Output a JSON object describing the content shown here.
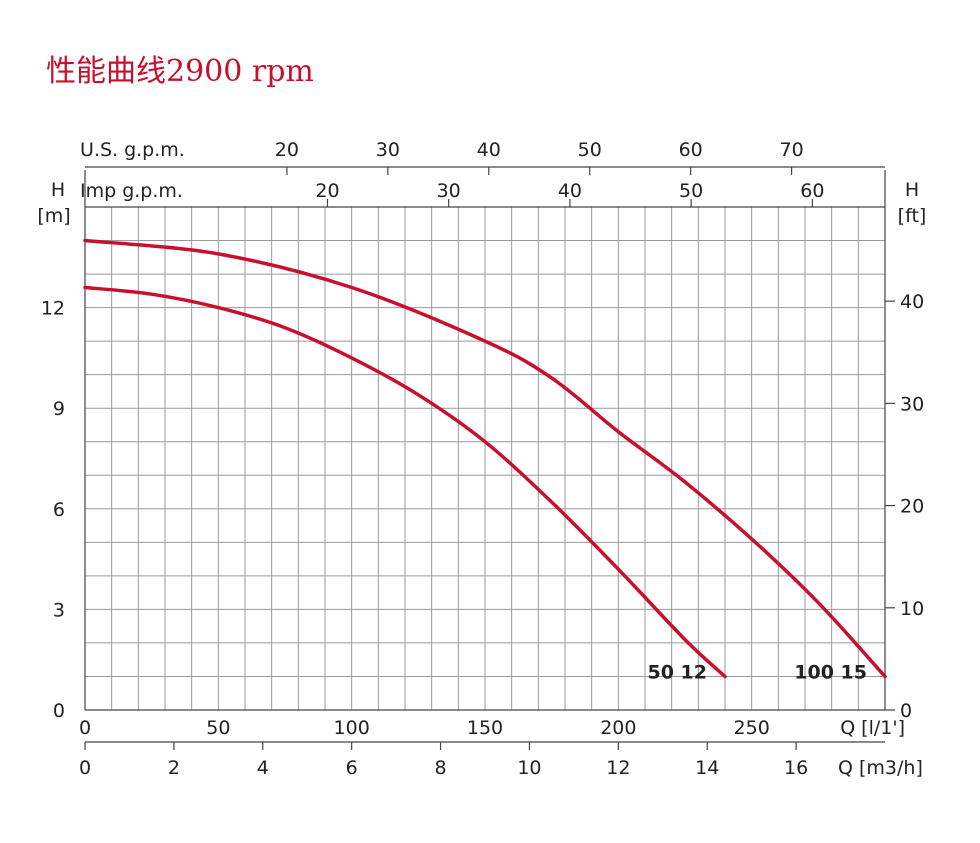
{
  "chart_data": {
    "type": "line",
    "title": "性能曲线2900 rpm",
    "x_axis_bottom_1": {
      "label": "Q [l/1']",
      "range": [
        0,
        300
      ],
      "ticks": [
        0,
        50,
        100,
        150,
        200,
        250
      ]
    },
    "x_axis_bottom_2": {
      "label": "Q [m3/h]",
      "range": [
        0,
        18
      ],
      "ticks": [
        0,
        2,
        4,
        6,
        8,
        10,
        12,
        14,
        16
      ]
    },
    "x_axis_top_us": {
      "label": "U.S. g.p.m.",
      "ticks": [
        20,
        30,
        40,
        50,
        60,
        70
      ]
    },
    "x_axis_top_imp": {
      "label": "Imp g.p.m.",
      "ticks": [
        20,
        30,
        40,
        50,
        60
      ]
    },
    "y_axis_left": {
      "label_top": "H",
      "unit": "[m]",
      "range": [
        0,
        15
      ],
      "ticks": [
        0,
        3,
        6,
        9,
        12
      ]
    },
    "y_axis_right": {
      "label_top": "H",
      "unit": "[ft]",
      "ticks": [
        0,
        10,
        20,
        30,
        40
      ]
    },
    "grid": true,
    "series": [
      {
        "name": "50 12",
        "color": "#c8102e",
        "points": [
          [
            0,
            12.6
          ],
          [
            25,
            12.4
          ],
          [
            50,
            12.0
          ],
          [
            75,
            11.4
          ],
          [
            100,
            10.5
          ],
          [
            125,
            9.4
          ],
          [
            150,
            8.0
          ],
          [
            175,
            6.2
          ],
          [
            200,
            4.2
          ],
          [
            225,
            2.1
          ],
          [
            240,
            1.0
          ]
        ]
      },
      {
        "name": "100 15",
        "color": "#c8102e",
        "points": [
          [
            0,
            14.0
          ],
          [
            50,
            13.6
          ],
          [
            100,
            12.6
          ],
          [
            150,
            11.0
          ],
          [
            175,
            9.9
          ],
          [
            200,
            8.3
          ],
          [
            225,
            6.8
          ],
          [
            250,
            5.1
          ],
          [
            275,
            3.2
          ],
          [
            300,
            1.0
          ]
        ]
      }
    ]
  }
}
